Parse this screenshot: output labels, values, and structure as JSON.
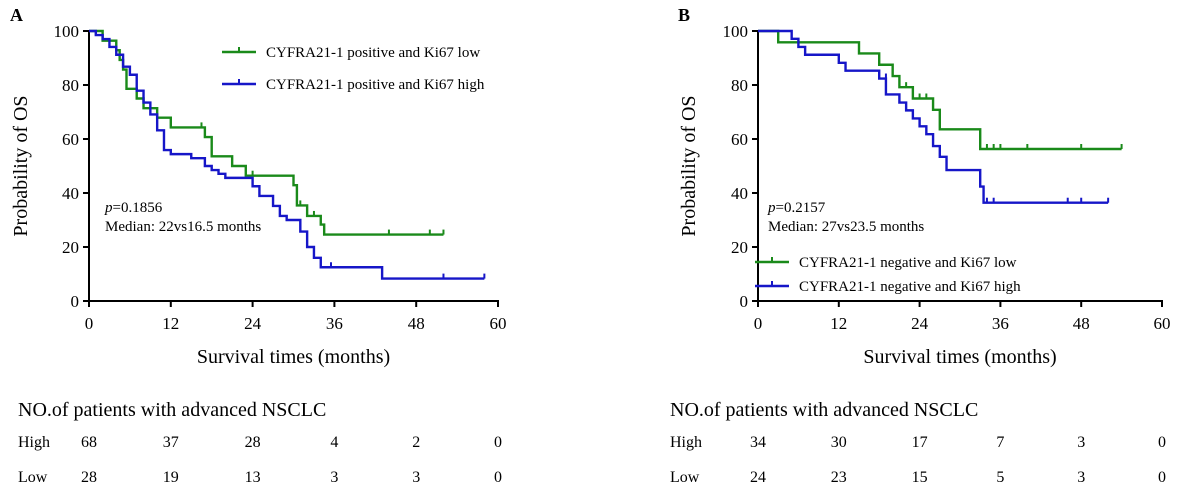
{
  "chart_data": [
    {
      "type": "line",
      "panel_label": "A",
      "xlabel": "Survival times (months)",
      "ylabel": "Probability of OS",
      "xlim": [
        0,
        60
      ],
      "ylim": [
        0,
        100
      ],
      "xticks": [
        0,
        12,
        24,
        36,
        48,
        60
      ],
      "yticks": [
        0,
        20,
        40,
        60,
        80,
        100
      ],
      "legend_position": "top-right",
      "annotation": {
        "p_label": "p",
        "p_value": "=0.1856",
        "median": "Median: 22vs16.5 months"
      },
      "series": [
        {
          "name": "CYFRA21-1 positive and Ki67 low",
          "color": "#1a8a1a",
          "steps": [
            [
              0,
              100
            ],
            [
              2,
              96.4
            ],
            [
              4,
              92.9
            ],
            [
              4.5,
              89.3
            ],
            [
              5,
              85.7
            ],
            [
              5.5,
              78.6
            ],
            [
              7,
              75
            ],
            [
              8,
              71.4
            ],
            [
              10,
              67.9
            ],
            [
              12,
              64.3
            ],
            [
              17,
              60.7
            ],
            [
              18,
              53.6
            ],
            [
              21,
              50
            ],
            [
              23,
              46.4
            ],
            [
              30,
              42.9
            ],
            [
              30.5,
              35.4
            ],
            [
              32,
              31.5
            ],
            [
              34,
              28.3
            ],
            [
              34.5,
              24.6
            ],
            [
              52,
              24.6
            ]
          ],
          "censors": [
            [
              16.5,
              64.3
            ],
            [
              24,
              46.4
            ],
            [
              31,
              35.4
            ],
            [
              33,
              31.5
            ],
            [
              44,
              24.6
            ],
            [
              50,
              24.6
            ],
            [
              52,
              24.6
            ]
          ]
        },
        {
          "name": "CYFRA21-1 positive and Ki67 high",
          "color": "#1616c8",
          "steps": [
            [
              0,
              100
            ],
            [
              1,
              98.5
            ],
            [
              2,
              97
            ],
            [
              3,
              94.1
            ],
            [
              4,
              91.2
            ],
            [
              5,
              86.8
            ],
            [
              6,
              83.8
            ],
            [
              7,
              77.9
            ],
            [
              8,
              73.5
            ],
            [
              9,
              69.1
            ],
            [
              10,
              63.2
            ],
            [
              11,
              55.9
            ],
            [
              12,
              54.4
            ],
            [
              15,
              52.9
            ],
            [
              17,
              50
            ],
            [
              18,
              48.5
            ],
            [
              19,
              47.1
            ],
            [
              20,
              45.6
            ],
            [
              24,
              42.5
            ],
            [
              25,
              38.9
            ],
            [
              27,
              35.2
            ],
            [
              28,
              31.5
            ],
            [
              29,
              30
            ],
            [
              31,
              25.7
            ],
            [
              32,
              20
            ],
            [
              33,
              16
            ],
            [
              34,
              12.5
            ],
            [
              43,
              8.3
            ],
            [
              58,
              8.3
            ]
          ],
          "censors": [
            [
              1,
              98.5
            ],
            [
              35.5,
              12.5
            ],
            [
              52,
              8.3
            ],
            [
              58,
              8.3
            ]
          ]
        }
      ],
      "risk_table": {
        "title": "NO.of patients with advanced NSCLC",
        "rows": [
          {
            "label": "High",
            "values": [
              "68",
              "37",
              "28",
              "4",
              "2",
              "0"
            ]
          },
          {
            "label": "Low",
            "values": [
              "28",
              "19",
              "13",
              "3",
              "3",
              "0"
            ]
          }
        ]
      }
    },
    {
      "type": "line",
      "panel_label": "B",
      "xlabel": "Survival times (months)",
      "ylabel": "Probability of OS",
      "xlim": [
        0,
        60
      ],
      "ylim": [
        0,
        100
      ],
      "xticks": [
        0,
        12,
        24,
        36,
        48,
        60
      ],
      "yticks": [
        0,
        20,
        40,
        60,
        80,
        100
      ],
      "legend_position": "bottom-right",
      "annotation": {
        "p_label": "p",
        "p_value": "=0.2157",
        "median": "Median: 27vs23.5 months"
      },
      "series": [
        {
          "name": "CYFRA21-1 negative and Ki67 low",
          "color": "#1a8a1a",
          "steps": [
            [
              0,
              100
            ],
            [
              3,
              95.8
            ],
            [
              15,
              91.7
            ],
            [
              18,
              87.5
            ],
            [
              20,
              83.3
            ],
            [
              21,
              79.2
            ],
            [
              23,
              75
            ],
            [
              26,
              70.8
            ],
            [
              27,
              63.6
            ],
            [
              33,
              56.3
            ],
            [
              54,
              56.3
            ]
          ],
          "censors": [
            [
              22,
              79.2
            ],
            [
              24,
              75
            ],
            [
              25,
              75
            ],
            [
              34,
              56.3
            ],
            [
              35,
              56.3
            ],
            [
              36,
              56.3
            ],
            [
              40,
              56.3
            ],
            [
              48,
              56.3
            ],
            [
              54,
              56.3
            ]
          ]
        },
        {
          "name": "CYFRA21-1 negative and Ki67 high",
          "color": "#1616c8",
          "steps": [
            [
              0,
              100
            ],
            [
              5,
              97.1
            ],
            [
              6,
              94.1
            ],
            [
              7,
              91.2
            ],
            [
              12,
              88.2
            ],
            [
              13,
              85.3
            ],
            [
              18,
              82.4
            ],
            [
              19,
              76.5
            ],
            [
              21,
              73.5
            ],
            [
              22,
              70.6
            ],
            [
              23,
              67.6
            ],
            [
              24,
              64.7
            ],
            [
              25,
              61.8
            ],
            [
              26,
              57.4
            ],
            [
              27,
              53.4
            ],
            [
              28,
              48.5
            ],
            [
              33,
              42.4
            ],
            [
              33.5,
              36.4
            ],
            [
              52,
              36.4
            ]
          ],
          "censors": [
            [
              19,
              82.4
            ],
            [
              34,
              36.4
            ],
            [
              35,
              36.4
            ],
            [
              46,
              36.4
            ],
            [
              48,
              36.4
            ],
            [
              52,
              36.4
            ]
          ]
        }
      ],
      "risk_table": {
        "title": "NO.of patients with advanced NSCLC",
        "rows": [
          {
            "label": "High",
            "values": [
              "34",
              "30",
              "17",
              "7",
              "3",
              "0"
            ]
          },
          {
            "label": "Low",
            "values": [
              "24",
              "23",
              "15",
              "5",
              "3",
              "0"
            ]
          }
        ]
      }
    }
  ]
}
